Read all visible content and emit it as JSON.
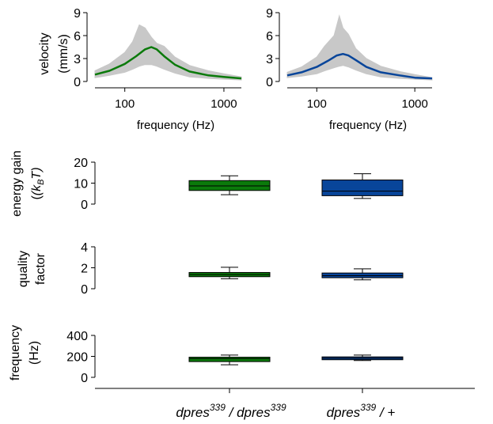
{
  "colors": {
    "green": "#0b7a0b",
    "blue": "#08459a",
    "gray": "#c8c8c8"
  },
  "chart_data": [
    {
      "type": "line",
      "id": "spectrum-left",
      "xlabel": "frequency (Hz)",
      "ylabel_lines": [
        "velocity",
        "(mm/s)"
      ],
      "xscale": "log",
      "xlim": [
        50,
        1500
      ],
      "ylim": [
        0,
        9
      ],
      "xticks": [
        100,
        1000
      ],
      "xtick_labels": [
        "100",
        "1000"
      ],
      "yticks": [
        0,
        3,
        6,
        9
      ],
      "ytick_labels": [
        "0",
        "3",
        "6",
        "9"
      ],
      "series": [
        {
          "color": "#0b7a0b",
          "x": [
            50,
            70,
            100,
            130,
            160,
            185,
            210,
            250,
            320,
            450,
            700,
            1000,
            1500
          ],
          "y": [
            0.9,
            1.4,
            2.3,
            3.3,
            4.2,
            4.5,
            4.2,
            3.3,
            2.2,
            1.3,
            0.8,
            0.6,
            0.4
          ]
        }
      ],
      "gray_band": {
        "x": [
          50,
          70,
          100,
          120,
          140,
          160,
          185,
          210,
          250,
          320,
          450,
          700,
          1000,
          1500
        ],
        "upper": [
          1.4,
          2.3,
          3.8,
          5.2,
          7.4,
          7.0,
          5.8,
          5.0,
          4.6,
          3.2,
          2.1,
          1.4,
          1.0,
          0.6
        ],
        "lower": [
          0.5,
          0.8,
          1.2,
          1.6,
          2.0,
          2.2,
          2.2,
          2.0,
          1.6,
          1.1,
          0.6,
          0.4,
          0.3,
          0.2
        ]
      }
    },
    {
      "type": "line",
      "id": "spectrum-right",
      "xlabel": "frequency (Hz)",
      "xscale": "log",
      "xlim": [
        50,
        1500
      ],
      "ylim": [
        0,
        9
      ],
      "xticks": [
        100,
        1000
      ],
      "xtick_labels": [
        "100",
        "1000"
      ],
      "yticks": [
        0,
        3,
        6,
        9
      ],
      "ytick_labels": [
        "0",
        "3",
        "6",
        "9"
      ],
      "series": [
        {
          "color": "#08459a",
          "x": [
            50,
            70,
            100,
            130,
            160,
            185,
            210,
            250,
            320,
            450,
            700,
            1000,
            1500
          ],
          "y": [
            0.8,
            1.2,
            1.9,
            2.7,
            3.4,
            3.6,
            3.4,
            2.8,
            1.9,
            1.2,
            0.8,
            0.5,
            0.4
          ]
        }
      ],
      "gray_band": {
        "x": [
          50,
          70,
          100,
          120,
          150,
          170,
          185,
          210,
          250,
          320,
          450,
          700,
          1000,
          1500
        ],
        "upper": [
          1.2,
          1.9,
          3.2,
          4.6,
          6.0,
          8.6,
          7.0,
          6.2,
          4.3,
          3.0,
          2.0,
          1.3,
          0.9,
          0.5
        ],
        "lower": [
          0.5,
          0.7,
          1.0,
          1.4,
          1.8,
          2.0,
          2.1,
          1.9,
          1.5,
          1.0,
          0.6,
          0.4,
          0.3,
          0.2
        ]
      }
    },
    {
      "type": "box",
      "id": "energy-gain",
      "ylabel_lines": [
        "energy gain",
        "(k",
        "B",
        "T)"
      ],
      "ylim": [
        0,
        20
      ],
      "yticks": [
        0,
        10,
        20
      ],
      "ytick_labels": [
        "0",
        "10",
        "20"
      ],
      "boxes": [
        {
          "group": 0,
          "color": "#0b7a0b",
          "whisker_low": 4.5,
          "q1": 6.5,
          "median": 8.7,
          "q3": 11.2,
          "whisker_high": 13.5
        },
        {
          "group": 1,
          "color": "#08459a",
          "whisker_low": 2.7,
          "q1": 4.0,
          "median": 6.2,
          "q3": 11.5,
          "whisker_high": 14.5
        }
      ]
    },
    {
      "type": "box",
      "id": "quality-factor",
      "ylabel_lines": [
        "quality",
        "factor"
      ],
      "ylim": [
        0,
        4
      ],
      "yticks": [
        0,
        2,
        4
      ],
      "ytick_labels": [
        "0",
        "2",
        "4"
      ],
      "boxes": [
        {
          "group": 0,
          "color": "#0b7a0b",
          "whisker_low": 0.95,
          "q1": 1.15,
          "median": 1.35,
          "q3": 1.55,
          "whisker_high": 2.05
        },
        {
          "group": 1,
          "color": "#08459a",
          "whisker_low": 0.85,
          "q1": 1.05,
          "median": 1.25,
          "q3": 1.5,
          "whisker_high": 1.9
        }
      ]
    },
    {
      "type": "box",
      "id": "frequency",
      "ylabel_lines": [
        "frequency",
        "(Hz)"
      ],
      "ylim": [
        0,
        400
      ],
      "yticks": [
        0,
        200,
        400
      ],
      "ytick_labels": [
        "0",
        "200",
        "400"
      ],
      "boxes": [
        {
          "group": 0,
          "color": "#0b7a0b",
          "whisker_low": 120,
          "q1": 150,
          "median": 178,
          "q3": 192,
          "whisker_high": 212
        },
        {
          "group": 1,
          "color": "#08459a",
          "whisker_low": 160,
          "q1": 168,
          "median": 182,
          "q3": 195,
          "whisker_high": 212
        }
      ]
    }
  ],
  "groups": [
    {
      "base": "dpres",
      "sup": "339",
      "sep": " / ",
      "base2": "dpres",
      "sup2": "339"
    },
    {
      "base": "dpres",
      "sup": "339",
      "sep": " / +",
      "base2": "",
      "sup2": ""
    }
  ]
}
